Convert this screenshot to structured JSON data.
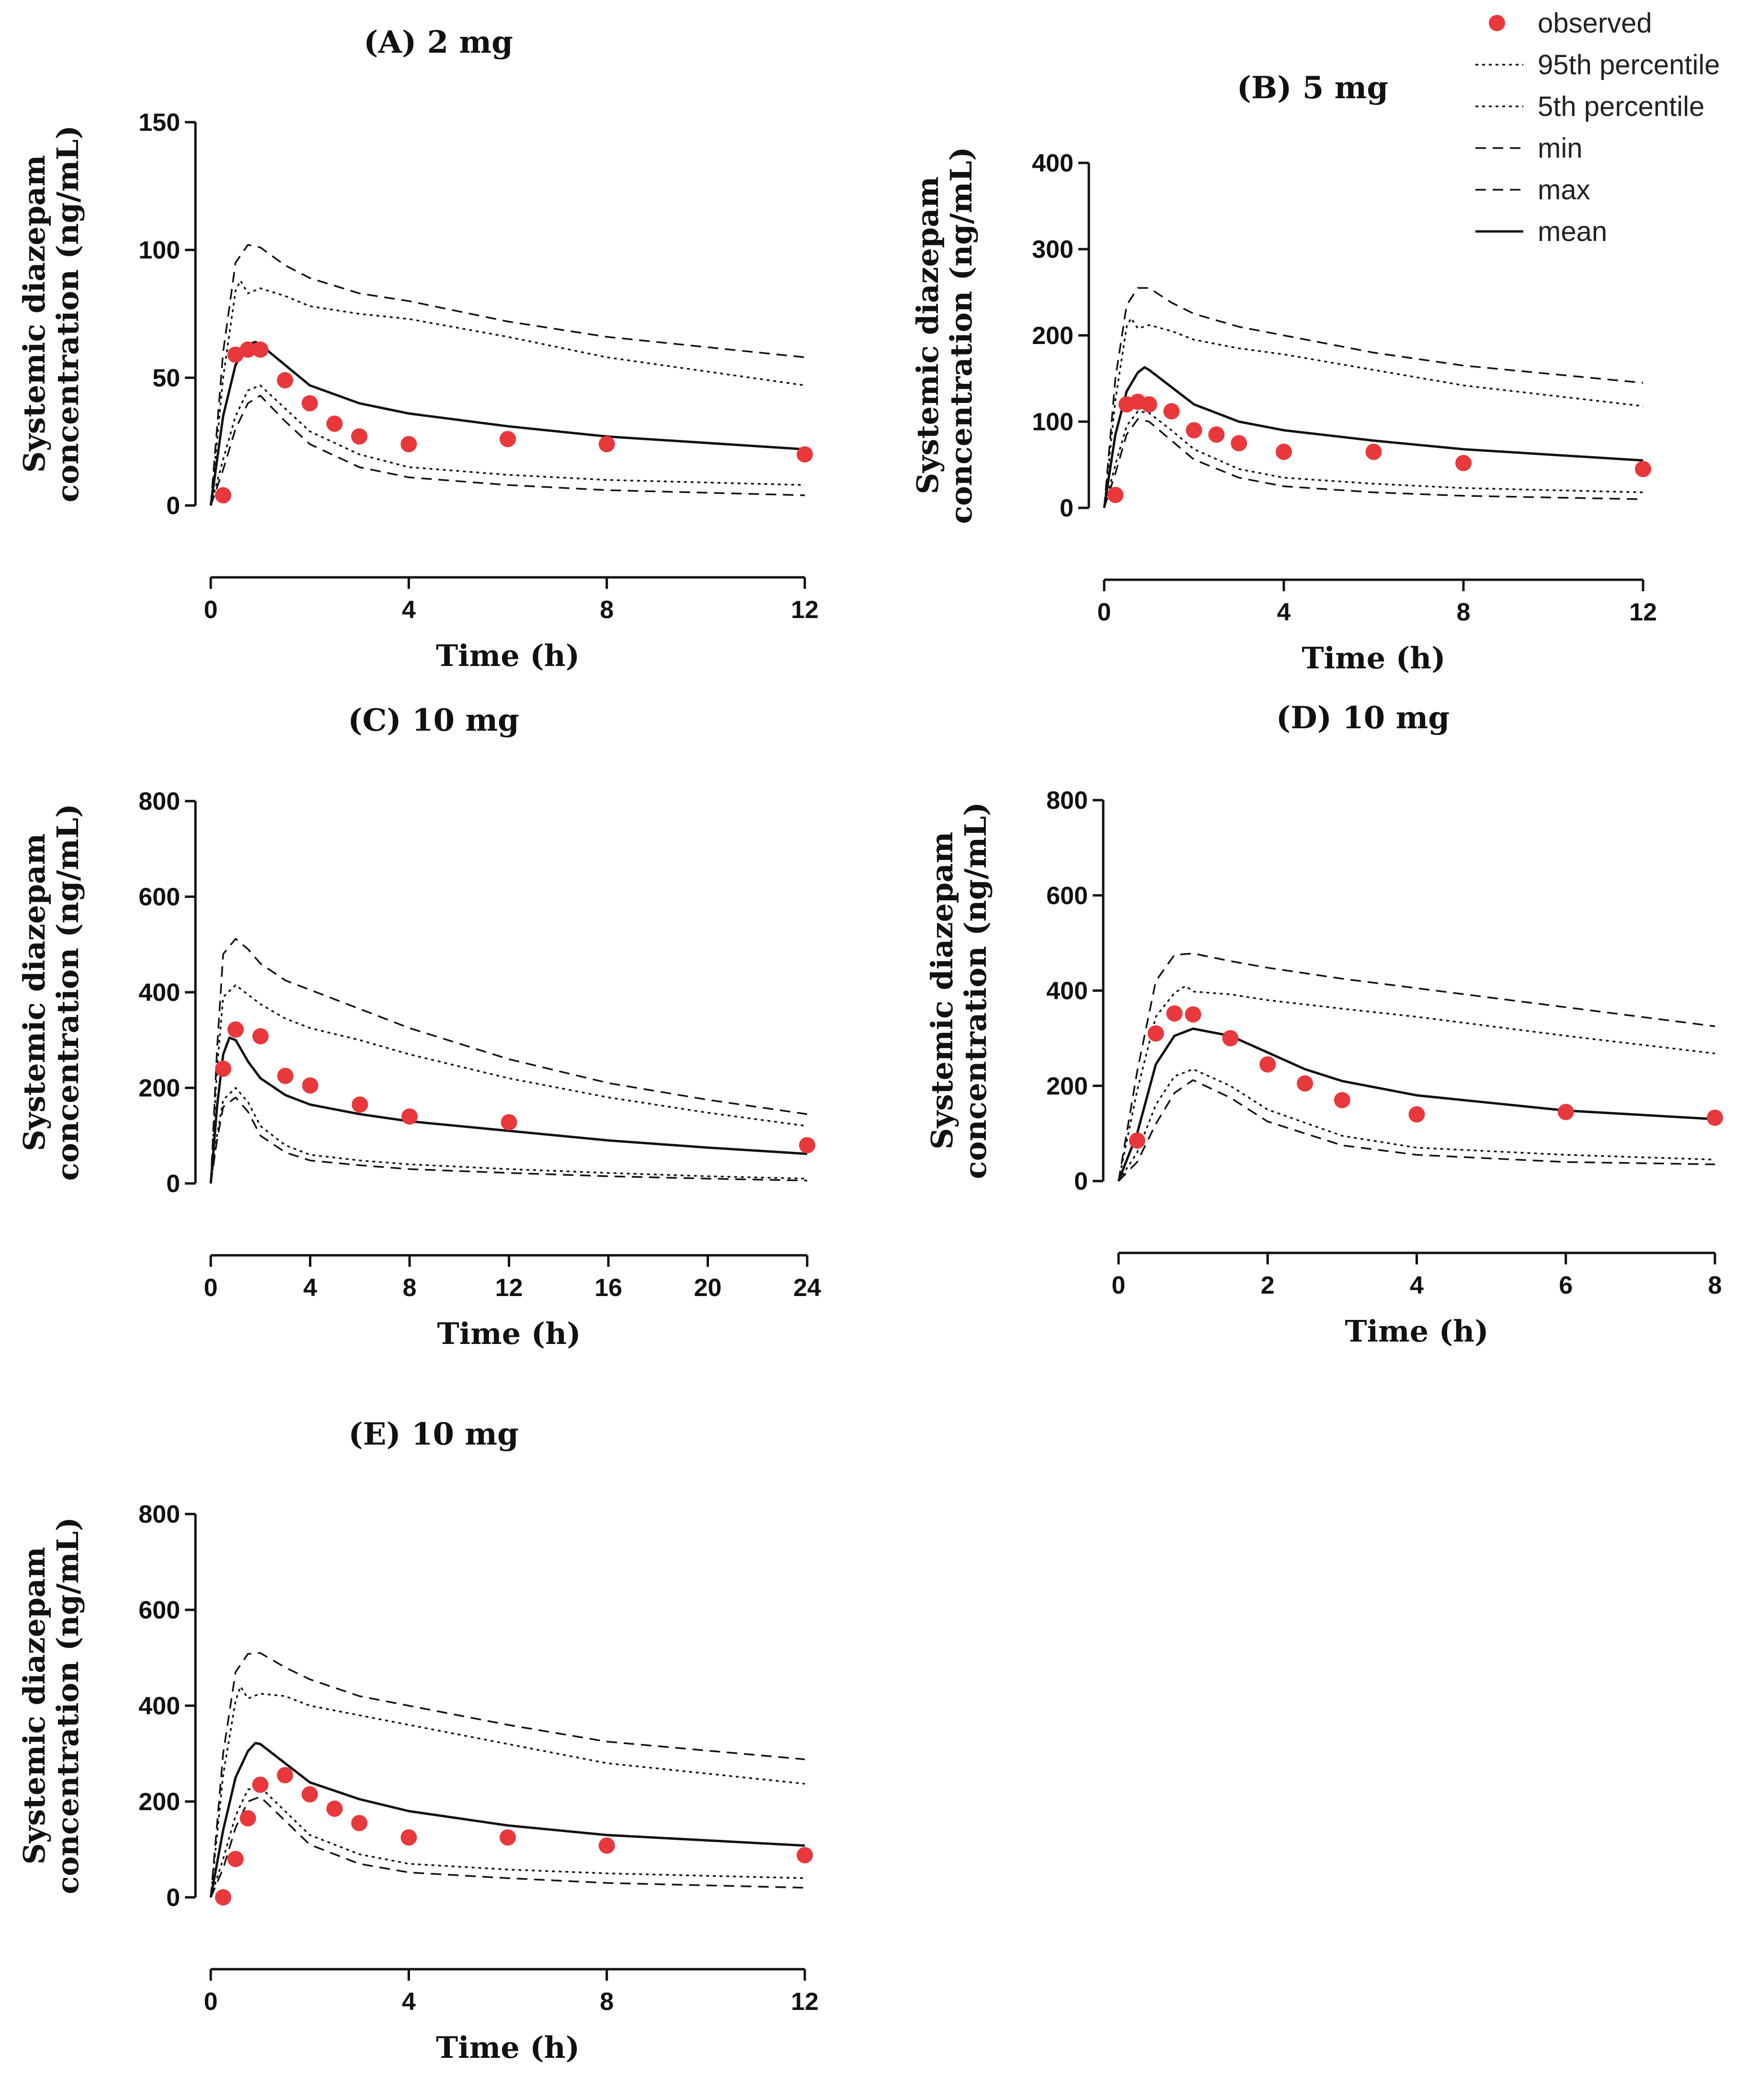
{
  "legend": {
    "items": [
      {
        "key": "observed",
        "label": "observed",
        "style": "dot"
      },
      {
        "key": "p95",
        "label": "95th percentile",
        "style": "dotted"
      },
      {
        "key": "p5",
        "label": "5th percentile",
        "style": "dotted"
      },
      {
        "key": "min",
        "label": "min",
        "style": "dashed"
      },
      {
        "key": "max",
        "label": "max",
        "style": "dashed"
      },
      {
        "key": "mean",
        "label": "mean",
        "style": "solid"
      }
    ],
    "observed_color": "#e8383b",
    "line_color": "#111111"
  },
  "chart_data": [
    {
      "id": "A",
      "type": "line",
      "title": "(A) 2 mg",
      "xlabel": "Time (h)",
      "ylabel_line1": "Systemic diazepam",
      "ylabel_line2": "concentration (ng/mL)",
      "xlim": [
        0,
        12
      ],
      "ylim": [
        0,
        150
      ],
      "xticks": [
        0,
        4,
        8,
        12
      ],
      "yticks": [
        0,
        50,
        100,
        150
      ],
      "observed": {
        "x": [
          0.25,
          0.5,
          0.75,
          1,
          1.5,
          2,
          2.5,
          3,
          4,
          6,
          8,
          12
        ],
        "y": [
          4,
          59,
          61,
          61,
          49,
          40,
          32,
          27,
          24,
          26,
          24,
          20
        ]
      },
      "series": [
        {
          "name": "max",
          "x": [
            0,
            0.25,
            0.5,
            0.75,
            1,
            1.5,
            2,
            3,
            4,
            6,
            8,
            12
          ],
          "y": [
            0,
            60,
            95,
            102,
            101,
            94,
            89,
            83,
            80,
            72,
            66,
            58
          ]
        },
        {
          "name": "95th percentile",
          "x": [
            0,
            0.25,
            0.5,
            0.6,
            0.75,
            1,
            1.5,
            2,
            3,
            4,
            6,
            8,
            12
          ],
          "y": [
            0,
            50,
            84,
            88,
            83,
            85,
            82,
            78,
            75,
            73,
            66,
            58,
            47
          ]
        },
        {
          "name": "mean",
          "x": [
            0,
            0.25,
            0.5,
            0.75,
            0.9,
            1,
            1.5,
            2,
            3,
            4,
            6,
            8,
            12
          ],
          "y": [
            0,
            35,
            55,
            63,
            64,
            63,
            55,
            47,
            40,
            36,
            31,
            27,
            22
          ]
        },
        {
          "name": "5th percentile",
          "x": [
            0,
            0.25,
            0.5,
            0.75,
            1,
            1.5,
            2,
            3,
            4,
            6,
            8,
            12
          ],
          "y": [
            0,
            18,
            35,
            45,
            47,
            38,
            29,
            20,
            15,
            12,
            10,
            8
          ]
        },
        {
          "name": "min",
          "x": [
            0,
            0.25,
            0.5,
            0.75,
            1,
            1.5,
            2,
            3,
            4,
            6,
            8,
            12
          ],
          "y": [
            0,
            14,
            30,
            40,
            43,
            33,
            24,
            15,
            11,
            8,
            6,
            4
          ]
        }
      ]
    },
    {
      "id": "B",
      "type": "line",
      "title": "(B) 5 mg",
      "xlabel": "Time (h)",
      "ylabel_line1": "Systemic diazepam",
      "ylabel_line2": "concentration (ng/mL)",
      "xlim": [
        0,
        12
      ],
      "ylim": [
        0,
        400
      ],
      "xticks": [
        0,
        4,
        8,
        12
      ],
      "yticks": [
        0,
        100,
        200,
        300,
        400
      ],
      "observed": {
        "x": [
          0.25,
          0.5,
          0.75,
          1,
          1.5,
          2,
          2.5,
          3,
          4,
          6,
          8,
          12
        ],
        "y": [
          15,
          120,
          123,
          120,
          112,
          90,
          85,
          75,
          65,
          65,
          52,
          45
        ]
      },
      "series": [
        {
          "name": "max",
          "x": [
            0,
            0.25,
            0.5,
            0.75,
            1,
            1.5,
            2,
            3,
            4,
            6,
            8,
            12
          ],
          "y": [
            0,
            150,
            235,
            255,
            255,
            238,
            225,
            210,
            200,
            180,
            165,
            145
          ]
        },
        {
          "name": "95th percentile",
          "x": [
            0,
            0.25,
            0.5,
            0.6,
            0.75,
            1,
            1.5,
            2,
            3,
            4,
            6,
            8,
            12
          ],
          "y": [
            0,
            125,
            210,
            220,
            208,
            212,
            205,
            195,
            185,
            178,
            160,
            142,
            118
          ]
        },
        {
          "name": "mean",
          "x": [
            0,
            0.25,
            0.5,
            0.75,
            0.9,
            1,
            1.5,
            2,
            3,
            4,
            6,
            8,
            12
          ],
          "y": [
            0,
            85,
            135,
            157,
            163,
            160,
            140,
            120,
            100,
            90,
            78,
            68,
            55
          ]
        },
        {
          "name": "5th percentile",
          "x": [
            0,
            0.25,
            0.5,
            0.75,
            1,
            1.5,
            2,
            3,
            4,
            6,
            8,
            12
          ],
          "y": [
            0,
            50,
            95,
            112,
            110,
            90,
            68,
            45,
            35,
            28,
            23,
            18
          ]
        },
        {
          "name": "min",
          "x": [
            0,
            0.25,
            0.5,
            0.75,
            1,
            1.5,
            2,
            3,
            4,
            6,
            8,
            12
          ],
          "y": [
            0,
            40,
            85,
            103,
            100,
            78,
            56,
            35,
            25,
            18,
            14,
            10
          ]
        }
      ]
    },
    {
      "id": "C",
      "type": "line",
      "title": "(C) 10 mg",
      "xlabel": "Time (h)",
      "ylabel_line1": "Systemic diazepam",
      "ylabel_line2": "concentration (ng/mL)",
      "xlim": [
        0,
        24
      ],
      "ylim": [
        0,
        800
      ],
      "xticks": [
        0,
        4,
        8,
        12,
        16,
        20,
        24
      ],
      "yticks": [
        0,
        200,
        400,
        600,
        800
      ],
      "observed": {
        "x": [
          0.5,
          1,
          2,
          3,
          4,
          6,
          8,
          12,
          24
        ],
        "y": [
          240,
          322,
          308,
          225,
          205,
          165,
          140,
          128,
          80
        ]
      },
      "series": [
        {
          "name": "max",
          "x": [
            0,
            0.25,
            0.5,
            1,
            1.5,
            2,
            3,
            4,
            6,
            8,
            12,
            16,
            20,
            24
          ],
          "y": [
            0,
            280,
            480,
            512,
            490,
            460,
            425,
            405,
            365,
            325,
            260,
            210,
            175,
            145
          ]
        },
        {
          "name": "95th percentile",
          "x": [
            0,
            0.25,
            0.5,
            1,
            1.5,
            2,
            3,
            4,
            6,
            8,
            12,
            16,
            20,
            24
          ],
          "y": [
            0,
            240,
            390,
            415,
            395,
            375,
            345,
            325,
            300,
            270,
            220,
            180,
            148,
            120
          ]
        },
        {
          "name": "mean",
          "x": [
            0,
            0.25,
            0.5,
            0.75,
            1,
            1.5,
            2,
            3,
            4,
            6,
            8,
            12,
            16,
            20,
            24
          ],
          "y": [
            0,
            160,
            270,
            305,
            300,
            255,
            220,
            185,
            165,
            145,
            130,
            110,
            90,
            75,
            62
          ]
        },
        {
          "name": "5th percentile",
          "x": [
            0,
            0.25,
            0.5,
            1,
            1.5,
            2,
            3,
            4,
            6,
            8,
            12,
            16,
            20,
            24
          ],
          "y": [
            0,
            100,
            175,
            200,
            170,
            120,
            80,
            60,
            48,
            40,
            30,
            22,
            15,
            10
          ]
        },
        {
          "name": "min",
          "x": [
            0,
            0.25,
            0.5,
            1,
            1.5,
            2,
            3,
            4,
            6,
            8,
            12,
            16,
            20,
            24
          ],
          "y": [
            0,
            90,
            160,
            180,
            150,
            100,
            65,
            48,
            38,
            30,
            22,
            15,
            10,
            6
          ]
        }
      ]
    },
    {
      "id": "D",
      "type": "line",
      "title": "(D) 10 mg",
      "xlabel": "Time (h)",
      "ylabel_line1": "Systemic diazepam",
      "ylabel_line2": "concentration (ng/mL)",
      "xlim": [
        0,
        8
      ],
      "ylim": [
        0,
        800
      ],
      "xticks": [
        0,
        2,
        4,
        6,
        8
      ],
      "yticks": [
        0,
        200,
        400,
        600,
        800
      ],
      "observed": {
        "x": [
          0.25,
          0.5,
          0.75,
          1,
          1.5,
          2,
          2.5,
          3,
          4,
          6,
          8
        ],
        "y": [
          85,
          310,
          352,
          350,
          300,
          245,
          205,
          170,
          140,
          145,
          133
        ]
      },
      "series": [
        {
          "name": "max",
          "x": [
            0,
            0.25,
            0.5,
            0.75,
            1,
            1.5,
            2,
            3,
            4,
            6,
            8
          ],
          "y": [
            0,
            230,
            420,
            475,
            478,
            462,
            448,
            425,
            405,
            365,
            325
          ]
        },
        {
          "name": "95th percentile",
          "x": [
            0,
            0.25,
            0.5,
            0.75,
            0.9,
            1,
            1.5,
            2,
            3,
            4,
            6,
            8
          ],
          "y": [
            0,
            190,
            345,
            395,
            410,
            398,
            392,
            380,
            362,
            345,
            305,
            268
          ]
        },
        {
          "name": "mean",
          "x": [
            0,
            0.25,
            0.5,
            0.75,
            1,
            1.5,
            2,
            2.5,
            3,
            4,
            6,
            8
          ],
          "y": [
            0,
            100,
            245,
            305,
            320,
            305,
            270,
            235,
            210,
            180,
            148,
            130
          ]
        },
        {
          "name": "5th percentile",
          "x": [
            0,
            0.25,
            0.5,
            0.75,
            1,
            1.5,
            2,
            3,
            4,
            6,
            8
          ],
          "y": [
            0,
            60,
            160,
            220,
            235,
            200,
            150,
            95,
            70,
            55,
            45
          ]
        },
        {
          "name": "min",
          "x": [
            0,
            0.25,
            0.5,
            0.75,
            1,
            1.5,
            2,
            3,
            4,
            6,
            8
          ],
          "y": [
            0,
            40,
            120,
            185,
            212,
            175,
            125,
            75,
            55,
            40,
            35
          ]
        }
      ]
    },
    {
      "id": "E",
      "type": "line",
      "title": "(E) 10 mg",
      "xlabel": "Time (h)",
      "ylabel_line1": "Systemic diazepam",
      "ylabel_line2": "concentration (ng/mL)",
      "xlim": [
        0,
        12
      ],
      "ylim": [
        0,
        800
      ],
      "xticks": [
        0,
        4,
        8,
        12
      ],
      "yticks": [
        0,
        200,
        400,
        600,
        800
      ],
      "observed": {
        "x": [
          0.25,
          0.5,
          0.75,
          1,
          1.5,
          2,
          2.5,
          3,
          4,
          6,
          8,
          12
        ],
        "y": [
          0,
          80,
          165,
          235,
          255,
          215,
          185,
          155,
          125,
          125,
          108,
          88
        ]
      },
      "series": [
        {
          "name": "max",
          "x": [
            0,
            0.25,
            0.5,
            0.75,
            1,
            1.5,
            2,
            3,
            4,
            6,
            8,
            12
          ],
          "y": [
            0,
            300,
            470,
            508,
            510,
            480,
            455,
            420,
            400,
            360,
            325,
            288
          ]
        },
        {
          "name": "95th percentile",
          "x": [
            0,
            0.25,
            0.5,
            0.6,
            0.75,
            1,
            1.5,
            2,
            3,
            4,
            6,
            8,
            12
          ],
          "y": [
            0,
            255,
            410,
            440,
            415,
            425,
            420,
            400,
            380,
            360,
            320,
            280,
            237
          ]
        },
        {
          "name": "mean",
          "x": [
            0,
            0.25,
            0.5,
            0.75,
            0.9,
            1,
            1.5,
            2,
            3,
            4,
            6,
            8,
            12
          ],
          "y": [
            0,
            140,
            250,
            305,
            322,
            320,
            280,
            240,
            205,
            180,
            150,
            130,
            108
          ]
        },
        {
          "name": "5th percentile",
          "x": [
            0,
            0.25,
            0.5,
            0.75,
            1,
            1.5,
            2,
            3,
            4,
            6,
            8,
            12
          ],
          "y": [
            0,
            80,
            170,
            225,
            230,
            180,
            130,
            90,
            70,
            58,
            50,
            40
          ]
        },
        {
          "name": "min",
          "x": [
            0,
            0.25,
            0.5,
            0.75,
            1,
            1.5,
            2,
            3,
            4,
            6,
            8,
            12
          ],
          "y": [
            0,
            60,
            145,
            200,
            210,
            160,
            110,
            70,
            52,
            40,
            30,
            20
          ]
        }
      ]
    }
  ]
}
